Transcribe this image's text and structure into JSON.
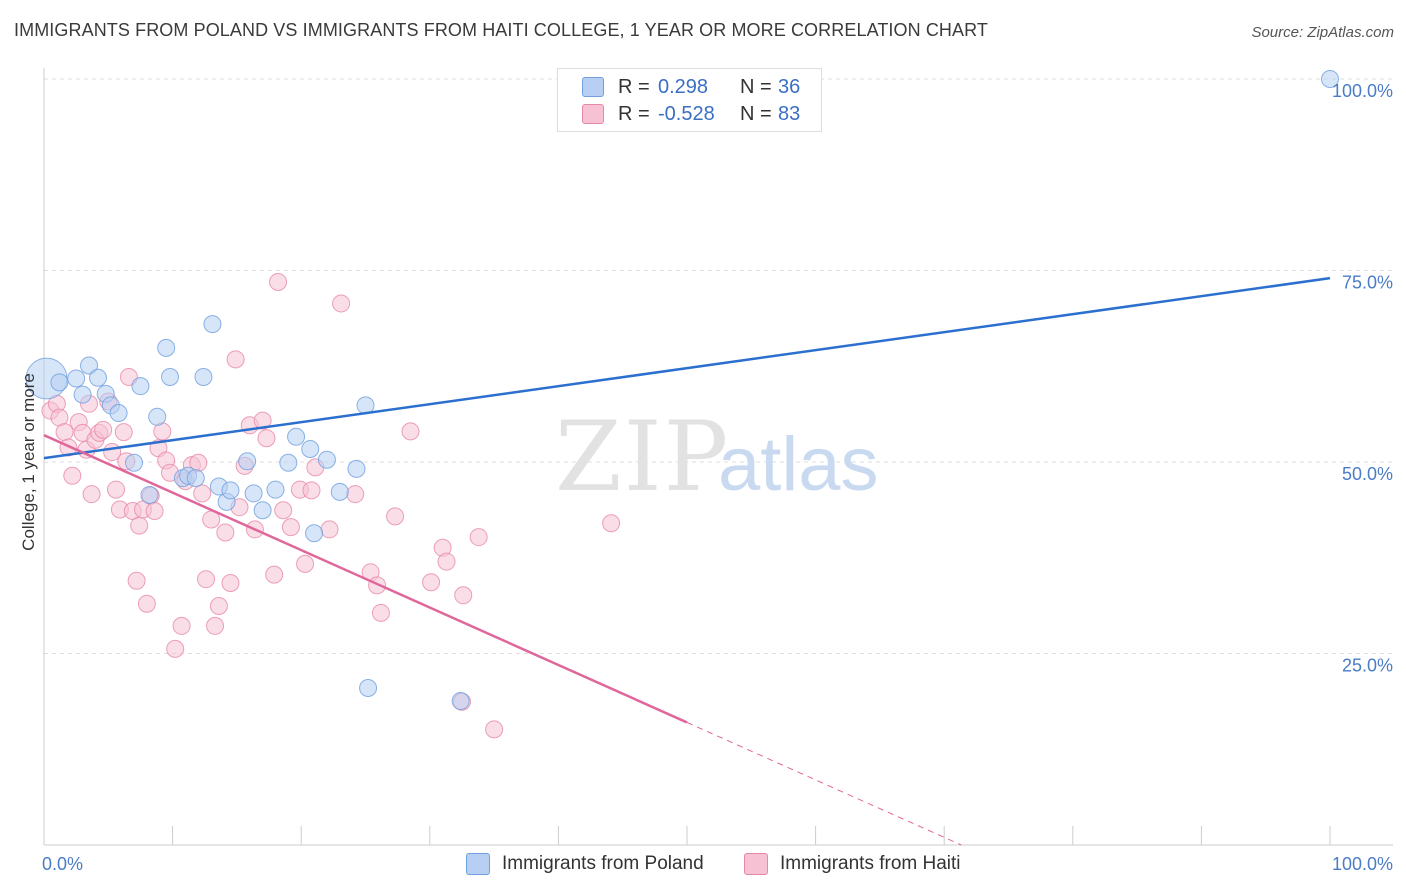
{
  "title": "IMMIGRANTS FROM POLAND VS IMMIGRANTS FROM HAITI COLLEGE, 1 YEAR OR MORE CORRELATION CHART",
  "source": "Source: ZipAtlas.com",
  "watermark": {
    "zip": "ZIP",
    "atlas": "atlas"
  },
  "colors": {
    "poland": "#6f9fe0",
    "poland_fill": "#b6cff3",
    "poland_line": "#2b6fcf",
    "haiti": "#e888a8",
    "haiti_fill": "#f6c2d3",
    "haiti_line": "#e0679a",
    "tick_label": "#4a7cc7",
    "grid": "#dddddd"
  },
  "legend": {
    "rows": [
      {
        "r_label": "R =",
        "r_value": "0.298",
        "n_label": "N =",
        "n_value": "36"
      },
      {
        "r_label": "R =",
        "r_value": "-0.528",
        "n_label": "N =",
        "n_value": "83"
      }
    ]
  },
  "bottom_legend": {
    "poland": "Immigrants from Poland",
    "haiti": "Immigrants from Haiti"
  },
  "chart_data": {
    "type": "scatter",
    "title": "IMMIGRANTS FROM POLAND VS IMMIGRANTS FROM HAITI COLLEGE, 1 YEAR OR MORE CORRELATION CHART",
    "xlabel": "",
    "ylabel": "College, 1 year or more",
    "xlim": [
      0,
      100
    ],
    "ylim": [
      0,
      100
    ],
    "x_tick_labels": [
      "0.0%",
      "100.0%"
    ],
    "y_tick_labels": [
      "25.0%",
      "50.0%",
      "75.0%",
      "100.0%"
    ],
    "y_ticks": [
      25,
      50,
      75,
      100
    ],
    "grid": true,
    "series": [
      {
        "name": "Immigrants from Poland",
        "r": 0.298,
        "n": 36,
        "trend": {
          "x0": 0,
          "y0": 50.5,
          "x1": 100,
          "y1": 74.0,
          "solid_to": 100
        },
        "points": [
          [
            0.2,
            60.9,
            2.4
          ],
          [
            1.2,
            60.4,
            1
          ],
          [
            2.5,
            60.9,
            1
          ],
          [
            3.0,
            58.8,
            1
          ],
          [
            3.5,
            62.6,
            1
          ],
          [
            4.2,
            61.0,
            1
          ],
          [
            4.8,
            58.9,
            1
          ],
          [
            5.2,
            57.4,
            1
          ],
          [
            5.8,
            56.4,
            1
          ],
          [
            7.0,
            49.9,
            1
          ],
          [
            7.5,
            59.9,
            1
          ],
          [
            8.2,
            45.7,
            1
          ],
          [
            8.8,
            55.9,
            1
          ],
          [
            9.5,
            64.9,
            1
          ],
          [
            9.8,
            61.1,
            1
          ],
          [
            10.8,
            47.9,
            1
          ],
          [
            11.2,
            48.2,
            1
          ],
          [
            11.8,
            47.9,
            1
          ],
          [
            12.4,
            61.1,
            1
          ],
          [
            13.1,
            68.0,
            1
          ],
          [
            13.6,
            46.8,
            1
          ],
          [
            14.2,
            44.8,
            1
          ],
          [
            14.5,
            46.3,
            1
          ],
          [
            15.8,
            50.1,
            1
          ],
          [
            16.3,
            45.9,
            1
          ],
          [
            17.0,
            43.7,
            1
          ],
          [
            18.0,
            46.4,
            1
          ],
          [
            19.0,
            49.9,
            1
          ],
          [
            19.6,
            53.3,
            1
          ],
          [
            20.7,
            51.7,
            1
          ],
          [
            21.0,
            40.7,
            1
          ],
          [
            22.0,
            50.3,
            1
          ],
          [
            23.0,
            46.1,
            1
          ],
          [
            24.3,
            49.1,
            1
          ],
          [
            25.2,
            20.5,
            1
          ],
          [
            25.0,
            57.4,
            1
          ],
          [
            32.4,
            18.8,
            1
          ],
          [
            100,
            100,
            1
          ]
        ]
      },
      {
        "name": "Immigrants from Haiti",
        "r": -0.528,
        "n": 83,
        "trend": {
          "x0": 0,
          "y0": 53.5,
          "x1": 100,
          "y1": -21.5,
          "solid_to": 50
        },
        "points": [
          [
            0.5,
            56.7,
            1
          ],
          [
            1.0,
            57.6,
            1
          ],
          [
            1.2,
            55.8,
            1
          ],
          [
            1.6,
            53.9,
            1
          ],
          [
            1.9,
            51.9,
            1
          ],
          [
            2.2,
            48.2,
            1
          ],
          [
            2.7,
            55.2,
            1
          ],
          [
            3.0,
            53.8,
            1
          ],
          [
            3.3,
            51.6,
            1
          ],
          [
            3.5,
            57.6,
            1
          ],
          [
            3.7,
            45.8,
            1
          ],
          [
            4.0,
            52.9,
            1
          ],
          [
            4.3,
            53.8,
            1
          ],
          [
            4.6,
            54.2,
            1
          ],
          [
            5.0,
            57.9,
            1
          ],
          [
            5.3,
            51.3,
            1
          ],
          [
            5.6,
            46.4,
            1
          ],
          [
            5.9,
            43.8,
            1
          ],
          [
            6.2,
            53.9,
            1
          ],
          [
            6.4,
            50.1,
            1
          ],
          [
            6.6,
            61.1,
            1
          ],
          [
            6.9,
            43.6,
            1
          ],
          [
            7.2,
            34.5,
            1
          ],
          [
            7.4,
            41.7,
            1
          ],
          [
            7.7,
            43.8,
            1
          ],
          [
            8.0,
            31.5,
            1
          ],
          [
            8.3,
            45.6,
            1
          ],
          [
            8.6,
            43.6,
            1
          ],
          [
            8.9,
            51.8,
            1
          ],
          [
            9.2,
            54.0,
            1
          ],
          [
            9.5,
            50.2,
            1
          ],
          [
            9.8,
            48.6,
            1
          ],
          [
            10.2,
            25.6,
            1
          ],
          [
            10.7,
            28.6,
            1
          ],
          [
            11.0,
            47.5,
            1
          ],
          [
            11.5,
            49.6,
            1
          ],
          [
            12.0,
            49.9,
            1
          ],
          [
            12.3,
            45.9,
            1
          ],
          [
            12.6,
            34.7,
            1
          ],
          [
            13.0,
            42.5,
            1
          ],
          [
            13.3,
            28.6,
            1
          ],
          [
            13.6,
            31.2,
            1
          ],
          [
            14.1,
            40.8,
            1
          ],
          [
            14.5,
            34.2,
            1
          ],
          [
            14.9,
            63.4,
            1
          ],
          [
            15.2,
            44.1,
            1
          ],
          [
            15.6,
            49.5,
            1
          ],
          [
            16.0,
            54.8,
            1
          ],
          [
            16.4,
            41.2,
            1
          ],
          [
            17.0,
            55.4,
            1
          ],
          [
            17.3,
            53.1,
            1
          ],
          [
            17.9,
            35.3,
            1
          ],
          [
            18.2,
            73.5,
            1
          ],
          [
            18.6,
            43.7,
            1
          ],
          [
            19.2,
            41.5,
            1
          ],
          [
            19.9,
            46.4,
            1
          ],
          [
            20.3,
            36.7,
            1
          ],
          [
            20.8,
            46.3,
            1
          ],
          [
            21.1,
            49.3,
            1
          ],
          [
            22.2,
            41.2,
            1
          ],
          [
            23.1,
            70.7,
            1
          ],
          [
            24.2,
            45.8,
            1
          ],
          [
            25.4,
            35.6,
            1
          ],
          [
            25.9,
            33.9,
            1
          ],
          [
            26.2,
            30.3,
            1
          ],
          [
            27.3,
            42.9,
            1
          ],
          [
            28.5,
            54.0,
            1
          ],
          [
            30.1,
            34.3,
            1
          ],
          [
            31.0,
            38.8,
            1
          ],
          [
            31.3,
            37.0,
            1
          ],
          [
            32.6,
            32.6,
            1
          ],
          [
            33.8,
            40.2,
            1
          ],
          [
            32.5,
            18.7,
            1
          ],
          [
            35.0,
            15.1,
            1
          ],
          [
            44.1,
            42.0,
            1
          ]
        ]
      }
    ]
  }
}
